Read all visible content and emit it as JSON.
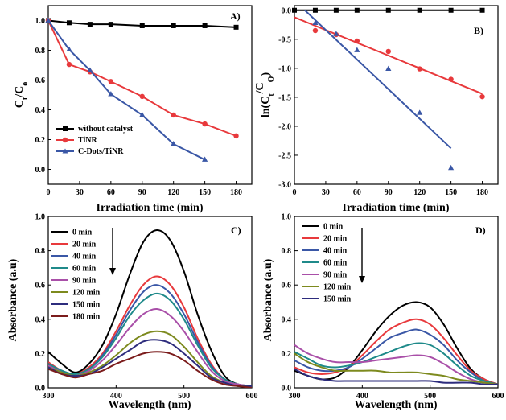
{
  "chart_data": [
    {
      "panel": "A)",
      "type": "line",
      "xlabel": "Irradiation time (min)",
      "ylabel": "Ct/Co",
      "xlim": [
        0,
        195
      ],
      "ylim": [
        -0.1,
        1.1
      ],
      "xticks": [
        "0",
        "30",
        "60",
        "90",
        "120",
        "150",
        "180"
      ],
      "yticks": [
        "0.0",
        "0.2",
        "0.4",
        "0.6",
        "0.8",
        "1.0"
      ],
      "legend_position": "bottom-left",
      "series": [
        {
          "name": "without catalyst",
          "color": "#000000",
          "marker": "square",
          "x": [
            0,
            20,
            40,
            60,
            90,
            120,
            150,
            180
          ],
          "y": [
            1.0,
            0.985,
            0.975,
            0.975,
            0.965,
            0.965,
            0.965,
            0.955
          ]
        },
        {
          "name": "TiNR",
          "color": "#e8393c",
          "marker": "circle",
          "x": [
            0,
            20,
            40,
            60,
            90,
            120,
            150,
            180
          ],
          "y": [
            1.0,
            0.705,
            0.655,
            0.59,
            0.49,
            0.365,
            0.305,
            0.225
          ]
        },
        {
          "name": "C-Dots/TiNR",
          "color": "#3a57a6",
          "marker": "triangle",
          "x": [
            0,
            20,
            40,
            60,
            90,
            120,
            150
          ],
          "y": [
            1.0,
            0.805,
            0.665,
            0.505,
            0.365,
            0.17,
            0.065
          ]
        }
      ]
    },
    {
      "panel": "B)",
      "type": "scatter",
      "xlabel": "Irradiation time (min)",
      "ylabel": "ln(Ct/Co)",
      "xlim": [
        0,
        195
      ],
      "ylim": [
        -3.0,
        0.08
      ],
      "xticks": [
        "0",
        "30",
        "60",
        "90",
        "120",
        "150",
        "180"
      ],
      "yticks": [
        "0.0",
        "-0.5",
        "-1.0",
        "-1.5",
        "-2.0",
        "-2.5",
        "-3.0"
      ],
      "series": [
        {
          "color": "#000000",
          "marker": "square",
          "x": [
            0,
            20,
            40,
            60,
            90,
            120,
            150,
            180
          ],
          "y": [
            0.0,
            0.0,
            0.0,
            0.0,
            0.0,
            0.0,
            0.0,
            0.0
          ],
          "fit": [
            [
              0,
              0.0
            ],
            [
              180,
              0.0
            ]
          ]
        },
        {
          "color": "#e8393c",
          "marker": "circle",
          "x": [
            20,
            40,
            60,
            90,
            120,
            150,
            180
          ],
          "y": [
            -0.35,
            -0.42,
            -0.53,
            -0.71,
            -1.01,
            -1.19,
            -1.49
          ],
          "fit": [
            [
              0,
              -0.12
            ],
            [
              180,
              -1.44
            ]
          ]
        },
        {
          "color": "#3a57a6",
          "marker": "triangle",
          "x": [
            20,
            40,
            60,
            90,
            120,
            150
          ],
          "y": [
            -0.22,
            -0.41,
            -0.69,
            -1.01,
            -1.77,
            -2.72
          ],
          "fit": [
            [
              10,
              0.0
            ],
            [
              150,
              -2.38
            ]
          ]
        }
      ]
    },
    {
      "panel": "C)",
      "type": "line",
      "xlabel": "Wavelength (nm)",
      "ylabel": "Absorbance (a.u)",
      "xlim": [
        300,
        600
      ],
      "ylim": [
        0,
        1.0
      ],
      "xticks": [
        "300",
        "400",
        "500",
        "600"
      ],
      "yticks": [
        "0.0",
        "0.2",
        "0.4",
        "0.6",
        "0.8",
        "1.0"
      ],
      "legend_position": "top-left",
      "series": [
        {
          "name": "0 min",
          "color": "#000000",
          "x": [
            300,
            320,
            340,
            360,
            380,
            400,
            420,
            440,
            460,
            480,
            500,
            520,
            540,
            560,
            580,
            600
          ],
          "y": [
            0.21,
            0.14,
            0.09,
            0.14,
            0.25,
            0.43,
            0.66,
            0.85,
            0.92,
            0.86,
            0.68,
            0.43,
            0.22,
            0.07,
            0.02,
            0.01
          ]
        },
        {
          "name": "20 min",
          "color": "#e8393c",
          "x": [
            300,
            320,
            340,
            360,
            380,
            400,
            420,
            440,
            460,
            480,
            500,
            520,
            540,
            560,
            580,
            600
          ],
          "y": [
            0.15,
            0.1,
            0.08,
            0.12,
            0.2,
            0.33,
            0.48,
            0.6,
            0.65,
            0.6,
            0.47,
            0.29,
            0.14,
            0.05,
            0.02,
            0.01
          ]
        },
        {
          "name": "40 min",
          "color": "#3a57a6",
          "x": [
            300,
            320,
            340,
            360,
            380,
            400,
            420,
            440,
            460,
            480,
            500,
            520,
            540,
            560,
            580,
            600
          ],
          "y": [
            0.14,
            0.1,
            0.08,
            0.11,
            0.19,
            0.31,
            0.45,
            0.56,
            0.6,
            0.55,
            0.43,
            0.27,
            0.13,
            0.05,
            0.02,
            0.01
          ]
        },
        {
          "name": "60 min",
          "color": "#1f8a8a",
          "x": [
            300,
            320,
            340,
            360,
            380,
            400,
            420,
            440,
            460,
            480,
            500,
            520,
            540,
            560,
            580,
            600
          ],
          "y": [
            0.14,
            0.1,
            0.08,
            0.11,
            0.18,
            0.29,
            0.42,
            0.51,
            0.55,
            0.51,
            0.4,
            0.25,
            0.12,
            0.05,
            0.02,
            0.01
          ]
        },
        {
          "name": "90 min",
          "color": "#a94fa8",
          "x": [
            300,
            320,
            340,
            360,
            380,
            400,
            420,
            440,
            460,
            480,
            500,
            520,
            540,
            560,
            580,
            600
          ],
          "y": [
            0.13,
            0.09,
            0.07,
            0.1,
            0.16,
            0.25,
            0.35,
            0.43,
            0.46,
            0.42,
            0.33,
            0.21,
            0.1,
            0.04,
            0.02,
            0.01
          ]
        },
        {
          "name": "120 min",
          "color": "#7d8a1e",
          "x": [
            300,
            320,
            340,
            360,
            380,
            400,
            420,
            440,
            460,
            480,
            500,
            520,
            540,
            560,
            580,
            600
          ],
          "y": [
            0.12,
            0.09,
            0.07,
            0.09,
            0.13,
            0.19,
            0.26,
            0.31,
            0.33,
            0.31,
            0.24,
            0.15,
            0.07,
            0.03,
            0.01,
            0.01
          ]
        },
        {
          "name": "150 min",
          "color": "#2d2c7d",
          "x": [
            300,
            320,
            340,
            360,
            380,
            400,
            420,
            440,
            460,
            480,
            500,
            520,
            540,
            560,
            580,
            600
          ],
          "y": [
            0.12,
            0.08,
            0.07,
            0.08,
            0.12,
            0.17,
            0.22,
            0.27,
            0.28,
            0.26,
            0.2,
            0.13,
            0.06,
            0.03,
            0.01,
            0.01
          ]
        },
        {
          "name": "180 min",
          "color": "#7b1c1c",
          "x": [
            300,
            320,
            340,
            360,
            380,
            400,
            420,
            440,
            460,
            480,
            500,
            520,
            540,
            560,
            580,
            600
          ],
          "y": [
            0.11,
            0.08,
            0.06,
            0.08,
            0.1,
            0.14,
            0.17,
            0.2,
            0.21,
            0.2,
            0.16,
            0.1,
            0.05,
            0.02,
            0.01,
            0.0
          ]
        }
      ]
    },
    {
      "panel": "D)",
      "type": "line",
      "xlabel": "Wavelength (nm)",
      "ylabel": "Absorbance (a.u)",
      "xlim": [
        300,
        600
      ],
      "ylim": [
        0,
        1.0
      ],
      "xticks": [
        "300",
        "400",
        "500",
        "600"
      ],
      "yticks": [
        "0.0",
        "0.2",
        "0.4",
        "0.6",
        "0.8",
        "1.0"
      ],
      "legend_position": "top-left",
      "series": [
        {
          "name": "0 min",
          "color": "#000000",
          "x": [
            300,
            320,
            340,
            360,
            380,
            400,
            420,
            440,
            460,
            480,
            500,
            520,
            540,
            560,
            580,
            600
          ],
          "y": [
            0.1,
            0.07,
            0.05,
            0.06,
            0.12,
            0.22,
            0.33,
            0.42,
            0.48,
            0.5,
            0.47,
            0.37,
            0.23,
            0.11,
            0.05,
            0.02
          ]
        },
        {
          "name": "20 min",
          "color": "#e8393c",
          "x": [
            300,
            320,
            340,
            360,
            380,
            400,
            420,
            440,
            460,
            480,
            500,
            520,
            540,
            560,
            580,
            600
          ],
          "y": [
            0.12,
            0.09,
            0.08,
            0.09,
            0.12,
            0.19,
            0.27,
            0.34,
            0.38,
            0.4,
            0.37,
            0.29,
            0.19,
            0.1,
            0.05,
            0.02
          ]
        },
        {
          "name": "40 min",
          "color": "#3a57a6",
          "x": [
            300,
            320,
            340,
            360,
            380,
            400,
            420,
            440,
            460,
            480,
            500,
            520,
            540,
            560,
            580,
            600
          ],
          "y": [
            0.16,
            0.12,
            0.1,
            0.1,
            0.12,
            0.17,
            0.23,
            0.29,
            0.32,
            0.34,
            0.31,
            0.25,
            0.16,
            0.09,
            0.04,
            0.02
          ]
        },
        {
          "name": "60 min",
          "color": "#1f8a8a",
          "x": [
            300,
            320,
            340,
            360,
            380,
            400,
            420,
            440,
            460,
            480,
            500,
            520,
            540,
            560,
            580,
            600
          ],
          "y": [
            0.21,
            0.17,
            0.13,
            0.12,
            0.13,
            0.15,
            0.18,
            0.21,
            0.24,
            0.26,
            0.25,
            0.2,
            0.13,
            0.07,
            0.04,
            0.02
          ]
        },
        {
          "name": "90 min",
          "color": "#a94fa8",
          "x": [
            300,
            320,
            340,
            360,
            380,
            400,
            420,
            440,
            460,
            480,
            500,
            520,
            540,
            560,
            580,
            600
          ],
          "y": [
            0.25,
            0.2,
            0.17,
            0.15,
            0.15,
            0.15,
            0.16,
            0.17,
            0.18,
            0.19,
            0.18,
            0.14,
            0.09,
            0.05,
            0.03,
            0.02
          ]
        },
        {
          "name": "120 min",
          "color": "#7d8a1e",
          "x": [
            300,
            320,
            340,
            360,
            380,
            400,
            420,
            440,
            460,
            480,
            500,
            520,
            540,
            560,
            580,
            600
          ],
          "y": [
            0.2,
            0.15,
            0.12,
            0.1,
            0.1,
            0.1,
            0.1,
            0.09,
            0.09,
            0.09,
            0.08,
            0.07,
            0.05,
            0.04,
            0.03,
            0.02
          ]
        },
        {
          "name": "150 min",
          "color": "#2d2c7d",
          "x": [
            300,
            320,
            340,
            360,
            380,
            400,
            420,
            440,
            460,
            480,
            500,
            520,
            540,
            560,
            580,
            600
          ],
          "y": [
            0.11,
            0.07,
            0.05,
            0.04,
            0.04,
            0.04,
            0.04,
            0.04,
            0.04,
            0.04,
            0.04,
            0.03,
            0.03,
            0.03,
            0.02,
            0.02
          ]
        }
      ]
    }
  ]
}
